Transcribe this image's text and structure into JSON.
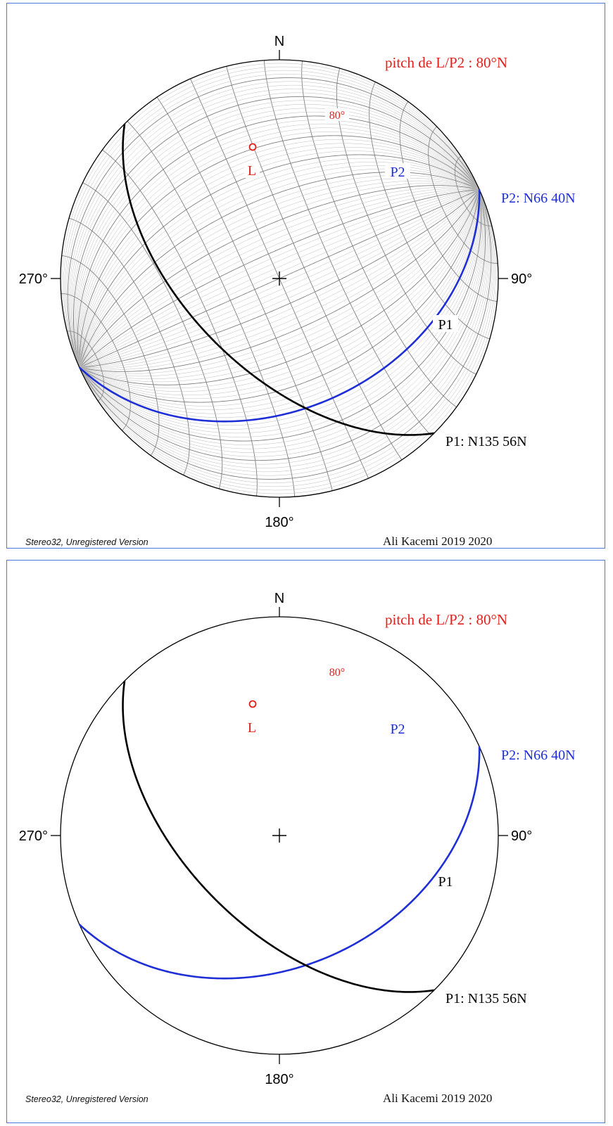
{
  "panels": [
    {
      "id": "with-net",
      "show_net": true,
      "compass": {
        "north": "N",
        "east": "90°",
        "south": "180°",
        "west": "270°"
      },
      "title": "pitch de L/P2 : 80°N",
      "pitch_label": "80°",
      "point_label": "L",
      "planes": [
        {
          "name": "P2",
          "label": "P2",
          "annotation": "P2: N66 40N",
          "strike": 66,
          "dip": 40,
          "color": "#1f2fd6"
        },
        {
          "name": "P1",
          "label": "P1",
          "annotation": "P1: N135 56N",
          "strike": 135,
          "dip": 56,
          "color": "#000000"
        }
      ],
      "footer_left": "Stereo32, Unregistered Version",
      "footer_right": "Ali Kacemi 2019 2020"
    },
    {
      "id": "without-net",
      "show_net": false,
      "compass": {
        "north": "N",
        "east": "90°",
        "south": "180°",
        "west": "270°"
      },
      "title": "pitch de L/P2 : 80°N",
      "pitch_label": "80°",
      "point_label": "L",
      "planes": [
        {
          "name": "P2",
          "label": "P2",
          "annotation": "P2: N66 40N",
          "strike": 66,
          "dip": 40,
          "color": "#1f2fd6"
        },
        {
          "name": "P1",
          "label": "P1",
          "annotation": "P1: N135 56N",
          "strike": 135,
          "dip": 56,
          "color": "#000000"
        }
      ],
      "footer_left": "Stereo32, Unregistered Version",
      "footer_right": "Ali Kacemi 2019 2020"
    }
  ],
  "colors": {
    "accent_red": "#e0201c",
    "net_line": "#7f7f7f",
    "frame": "#4b7bd6"
  }
}
